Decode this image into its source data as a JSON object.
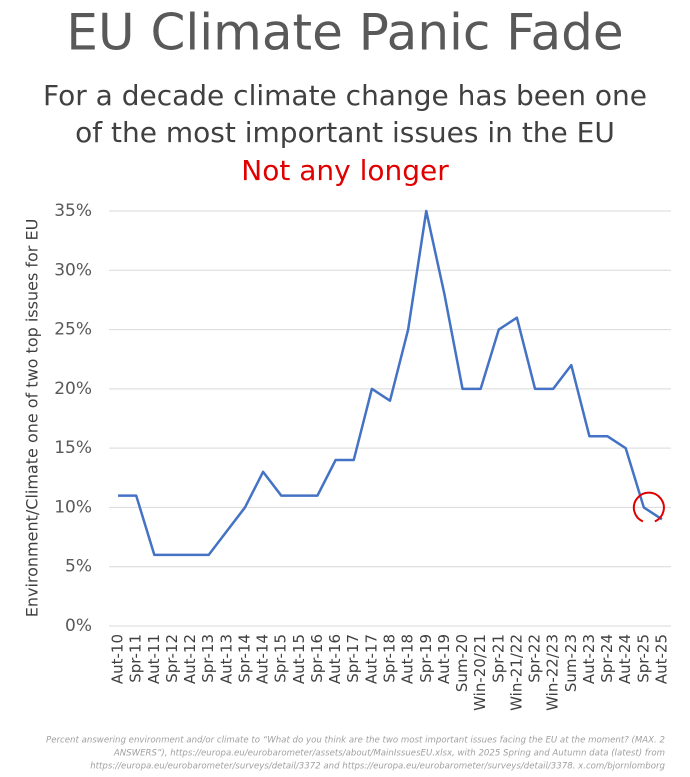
{
  "chart_data": {
    "type": "line",
    "title": "EU Climate Panic Fade",
    "subtitle": [
      "For a decade climate change has been one",
      "of the most important issues in the EU"
    ],
    "annotation": "Not any longer",
    "y_label": "Environment/Climate one of two top issues for EU",
    "categories": [
      "Aut-10",
      "Spr-11",
      "Aut-11",
      "Spr-12",
      "Aut-12",
      "Spr-13",
      "Aut-13",
      "Spr-14",
      "Aut-14",
      "Spr-15",
      "Aut-15",
      "Spr-16",
      "Aut-16",
      "Spr-17",
      "Aut-17",
      "Spr-18",
      "Aut-18",
      "Spr-19",
      "Aut-19",
      "Sum-20",
      "Win-20/21",
      "Spr-21",
      "Win-21/22",
      "Spr-22",
      "Win-22/23",
      "Sum-23",
      "Aut-23",
      "Spr-24",
      "Aut-24",
      "Spr-25",
      "Aut-25"
    ],
    "values": [
      11,
      11,
      6,
      6,
      6,
      6,
      8,
      10,
      13,
      11,
      11,
      11,
      14,
      14,
      20,
      19,
      25,
      35,
      28,
      20,
      20,
      25,
      26,
      20,
      20,
      22,
      16,
      16,
      15,
      10,
      9
    ],
    "color": "#4472c4",
    "ylim": [
      0,
      35
    ],
    "yticks": [
      {
        "value": 0,
        "label": "0%"
      },
      {
        "value": 5,
        "label": "5%"
      },
      {
        "value": 10,
        "label": "10%"
      },
      {
        "value": 15,
        "label": "15%"
      },
      {
        "value": 20,
        "label": "20%"
      },
      {
        "value": 25,
        "label": "25%"
      },
      {
        "value": 30,
        "label": "30%"
      },
      {
        "value": 35,
        "label": "35%"
      }
    ],
    "grid": true,
    "note": [
      "Percent answering environment and/or climate to “What do you think are the two most important issues facing the EU at the moment? (MAX. 2",
      "ANSWERS”), https://europa.eu/eurobarometer/assets/about/MainIssuesEU.xlsx, with 2025 Spring and Autumn data (latest) from",
      "https://europa.eu/eurobarometer/surveys/detail/3372 and https://europa.eu/eurobarometer/surveys/detail/3378. x.com/bjornlomborg"
    ]
  }
}
